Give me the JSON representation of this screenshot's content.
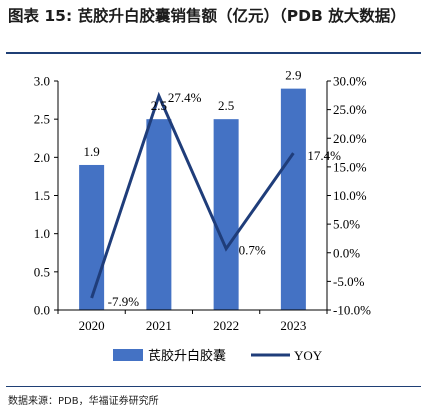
{
  "title": "图表 15:  芪胶升白胶囊销售额（亿元）（PDB 放大数据）",
  "source": "数据来源：PDB，华福证券研究所",
  "colors": {
    "bar": "#4472c4",
    "line": "#1f3d7a",
    "rule": "#1f3f75"
  },
  "chart_data": {
    "type": "bar",
    "categories": [
      "2020",
      "2021",
      "2022",
      "2023"
    ],
    "series": [
      {
        "name": "芪胶升白胶囊",
        "type": "bar",
        "axis": "left",
        "values": [
          1.9,
          2.5,
          2.5,
          2.9
        ],
        "labels": [
          "1.9",
          "2.5",
          "2.5",
          "2.9"
        ]
      },
      {
        "name": "YOY",
        "type": "line",
        "axis": "right",
        "values": [
          -7.9,
          27.4,
          0.7,
          17.4
        ],
        "labels": [
          "-7.9%",
          "27.4%",
          "0.7%",
          "17.4%"
        ]
      }
    ],
    "y_left": {
      "min": 0,
      "max": 3.0,
      "ticks": [
        "0.0",
        "0.5",
        "1.0",
        "1.5",
        "2.0",
        "2.5",
        "3.0"
      ]
    },
    "y_right": {
      "min": -10,
      "max": 30,
      "ticks": [
        "-10.0%",
        "-5.0%",
        "0.0%",
        "5.0%",
        "10.0%",
        "15.0%",
        "20.0%",
        "25.0%",
        "30.0%"
      ]
    },
    "grid": false,
    "legend": "bottom"
  }
}
